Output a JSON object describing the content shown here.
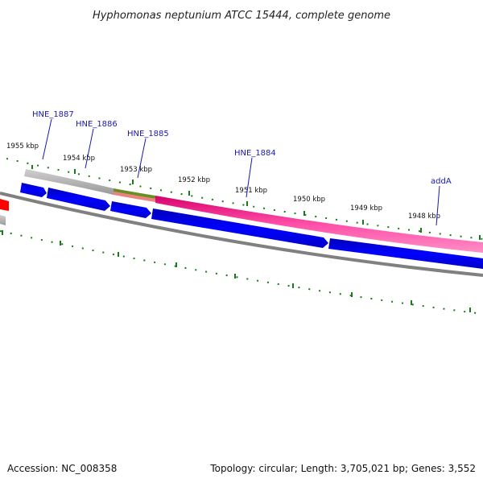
{
  "title": "Hyphomonas neptunium ATCC 15444, complete genome",
  "footer": {
    "accession": "Accession: NC_008358",
    "summary": "Topology: circular; Length: 3,705,021 bp; Genes: 3,552"
  },
  "ticks": [
    {
      "label": "1955 kbp"
    },
    {
      "label": "1954 kbp"
    },
    {
      "label": "1953 kbp"
    },
    {
      "label": "1952 kbp"
    },
    {
      "label": "1951 kbp"
    },
    {
      "label": "1950 kbp"
    },
    {
      "label": "1949 kbp"
    },
    {
      "label": "1948 kbp"
    }
  ],
  "genes": [
    {
      "label": "HNE_1887"
    },
    {
      "label": "HNE_1886"
    },
    {
      "label": "HNE_1885"
    },
    {
      "label": "HNE_1884"
    },
    {
      "label": "addA"
    }
  ],
  "colors": {
    "cds": "#0000ee",
    "gene_rna": "#ff3399",
    "grey_feature": "#b8b8b8",
    "olive_feature": "#6b8e23",
    "salmon_feature": "#f08080",
    "red_feature": "#ff0000",
    "backbone": "#808080",
    "tick": "#1a7a1a",
    "label": "#1a1aaa"
  }
}
